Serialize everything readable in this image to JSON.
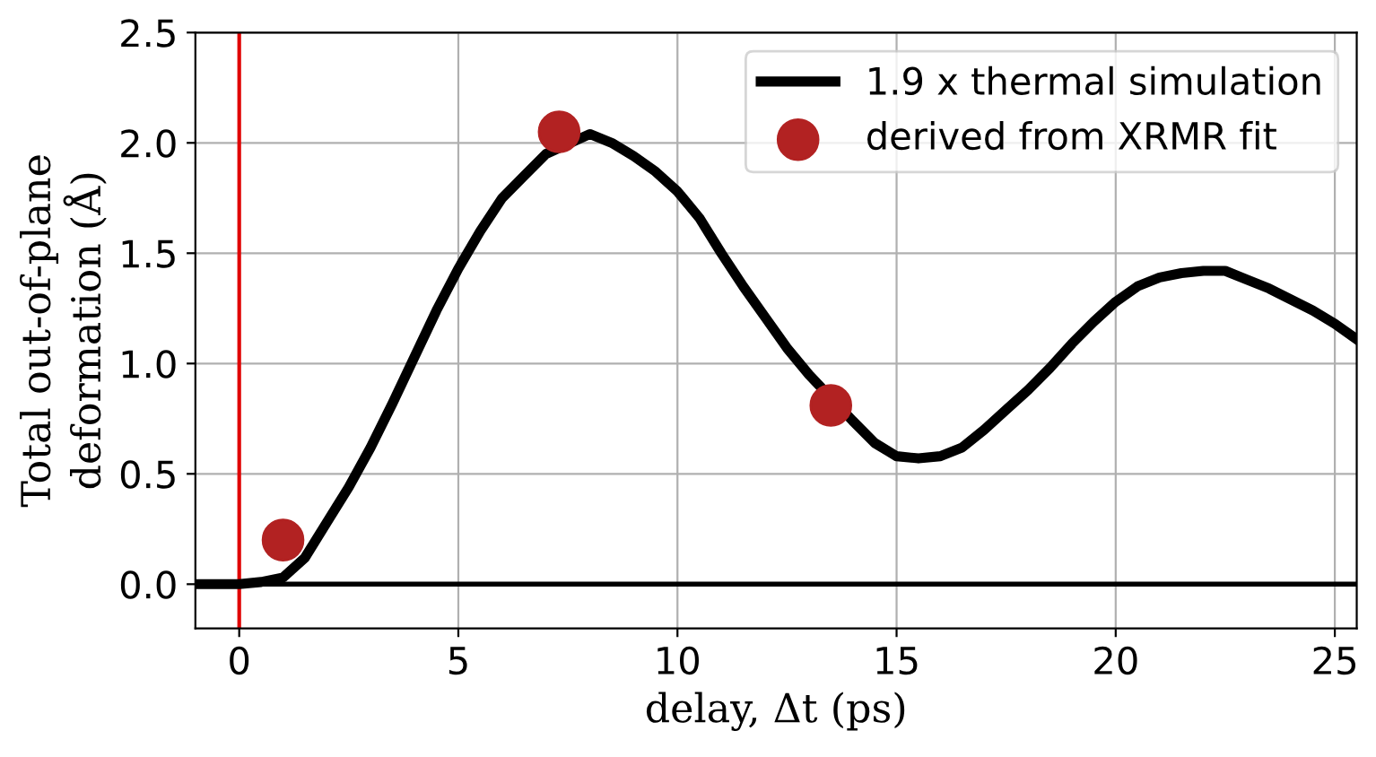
{
  "chart_data": {
    "type": "line",
    "xlabel": "delay, Δt (ps)",
    "ylabel": "Total out-of-plane\ndeformation (Å)",
    "xlim": [
      -1,
      25.5
    ],
    "ylim": [
      -0.2,
      2.5
    ],
    "xticks": [
      0,
      5,
      10,
      15,
      20,
      25
    ],
    "yticks": [
      {
        "value": 0,
        "label": "0.0"
      },
      0.5,
      {
        "value": 1,
        "label": "1.0"
      },
      1.5,
      {
        "value": 2,
        "label": "2.0"
      },
      2.5
    ],
    "grid": true,
    "legend": "top right",
    "ref_lines": [
      {
        "axis": "y",
        "value": 0,
        "color": "#000000"
      },
      {
        "axis": "x",
        "value": 0,
        "color": "#e00000"
      }
    ],
    "series": [
      {
        "name": "1.9 x thermal simulation",
        "color": "#000000",
        "marker": "none",
        "x": [
          -1,
          0,
          0.5,
          1,
          1.5,
          2,
          2.5,
          3,
          3.5,
          4,
          4.5,
          5,
          5.5,
          6,
          6.5,
          7,
          8,
          8.5,
          9,
          9.5,
          10,
          10.5,
          11,
          11.5,
          12,
          12.5,
          13,
          14,
          14.5,
          15,
          15.5,
          16,
          16.5,
          17,
          17.5,
          18,
          18.5,
          19,
          19.5,
          20,
          20.5,
          21,
          21.5,
          22,
          22.5,
          23,
          23.5,
          24,
          24.5,
          25,
          25.5
        ],
        "values": [
          0,
          0,
          0.01,
          0.03,
          0.12,
          0.28,
          0.44,
          0.62,
          0.82,
          1.03,
          1.24,
          1.43,
          1.6,
          1.75,
          1.85,
          1.95,
          2.04,
          2.0,
          1.94,
          1.87,
          1.78,
          1.66,
          1.5,
          1.35,
          1.21,
          1.07,
          0.95,
          0.74,
          0.64,
          0.58,
          0.57,
          0.58,
          0.62,
          0.7,
          0.79,
          0.88,
          0.98,
          1.09,
          1.19,
          1.28,
          1.35,
          1.39,
          1.41,
          1.42,
          1.42,
          1.38,
          1.34,
          1.29,
          1.24,
          1.18,
          1.11
        ]
      },
      {
        "name": "derived from XRMR fit",
        "type": "scatter",
        "color": "#b22222",
        "marker": "circle",
        "x": [
          1,
          7.3,
          13.5
        ],
        "values": [
          0.2,
          2.05,
          0.81
        ]
      }
    ]
  }
}
